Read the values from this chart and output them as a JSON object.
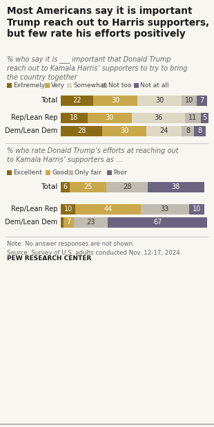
{
  "title": "Most Americans say it is important\nTrump reach out to Harris supporters,\nbut few rate his efforts positively",
  "subtitle1_plain": "% who say it is ___ important that Donald Trump\nreach out to Kamala Harris’ supporters to try to bring\nthe country together",
  "subtitle2_plain": "% who rate Donald Trump’s efforts at reaching out\nto Kamala Harris’ supporters as …",
  "note": "Note: No answer responses are not shown.\nSource: Survey of U.S. adults conducted Nov. 12-17, 2024.",
  "source_bold": "PEW RESEARCH CENTER",
  "section1": {
    "legend_labels": [
      "Extremely",
      "Very",
      "Somewhat",
      "Not too",
      "Not at all"
    ],
    "colors": [
      "#8B6B14",
      "#C9A84C",
      "#DDD8C4",
      "#C0BBB0",
      "#6B6480"
    ],
    "rows": [
      {
        "label": "Total",
        "values": [
          22,
          30,
          30,
          10,
          7
        ]
      },
      {
        "label": "Rep/Lean Rep",
        "values": [
          18,
          30,
          36,
          11,
          5
        ]
      },
      {
        "label": "Dem/Lean Dem",
        "values": [
          28,
          30,
          24,
          8,
          8
        ]
      }
    ]
  },
  "section2": {
    "legend_labels": [
      "Excellent",
      "Good",
      "Only fair",
      "Poor"
    ],
    "colors": [
      "#8B6B14",
      "#C9A84C",
      "#C0BBB0",
      "#6B6480"
    ],
    "rows": [
      {
        "label": "Total",
        "values": [
          6,
          25,
          28,
          38
        ]
      },
      {
        "label": "Rep/Lean Rep",
        "values": [
          10,
          44,
          33,
          10
        ]
      },
      {
        "label": "Dem/Lean Dem",
        "values": [
          2,
          7,
          23,
          67
        ]
      }
    ]
  },
  "bg_color": "#F8F6F1"
}
